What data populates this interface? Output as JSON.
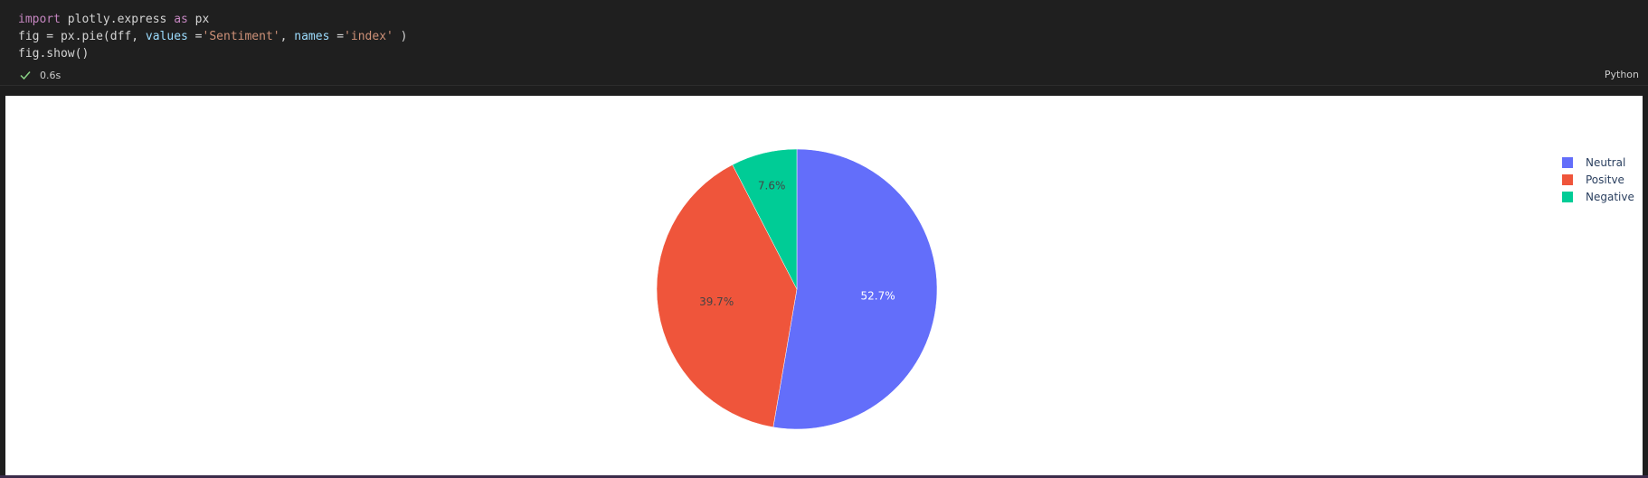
{
  "cell": {
    "code_lines": [
      [
        {
          "t": "import",
          "c": "kw"
        },
        {
          "t": " plotly.express ",
          "c": "fn"
        },
        {
          "t": "as",
          "c": "kw"
        },
        {
          "t": " px",
          "c": "fn"
        }
      ],
      [
        {
          "t": "fig = px.pie(dff, ",
          "c": "fn"
        },
        {
          "t": "values",
          "c": "param"
        },
        {
          "t": " =",
          "c": "fn"
        },
        {
          "t": "'Sentiment'",
          "c": "str"
        },
        {
          "t": ", ",
          "c": "fn"
        },
        {
          "t": "names",
          "c": "param"
        },
        {
          "t": " =",
          "c": "fn"
        },
        {
          "t": "'index'",
          "c": "str"
        },
        {
          "t": " )",
          "c": "fn"
        }
      ],
      [
        {
          "t": "fig.show()",
          "c": "fn"
        }
      ]
    ],
    "exec_time": "0.6s",
    "language": "Python"
  },
  "chart_data": {
    "type": "pie",
    "labels": [
      "Neutral",
      "Positve",
      "Negative"
    ],
    "values": [
      52.7,
      39.7,
      7.6
    ],
    "value_labels": [
      "52.7%",
      "39.7%",
      "7.6%"
    ],
    "colors": [
      "#636efa",
      "#ef553b",
      "#00cc96"
    ],
    "label_colors": [
      "#ffffff",
      "#444444",
      "#444444"
    ],
    "legend": [
      "Neutral",
      "Positve",
      "Negative"
    ],
    "legend_position": "top-right"
  }
}
